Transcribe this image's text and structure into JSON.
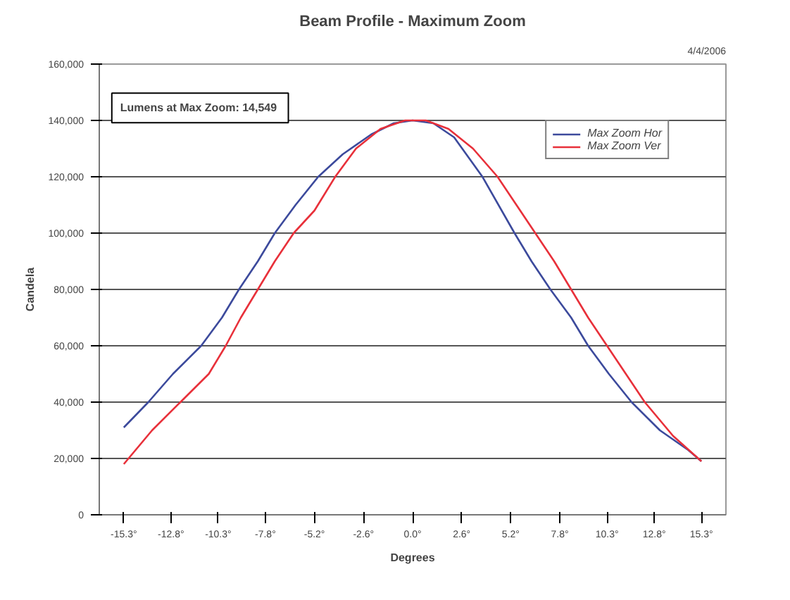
{
  "chart_data": {
    "type": "line",
    "title": "Beam Profile - Maximum Zoom",
    "xlabel": "Degrees",
    "ylabel": "Candela",
    "annotations": [
      "4/4/2006",
      "Lumens at Max Zoom:  14,549"
    ],
    "xlim": [
      -16.6,
      16.6
    ],
    "ylim": [
      0,
      160000
    ],
    "xticks": [
      {
        "value": -15.3,
        "label": "-15.3°"
      },
      {
        "value": -12.8,
        "label": "-12.8°"
      },
      {
        "value": -10.3,
        "label": "-10.3°"
      },
      {
        "value": -7.8,
        "label": "-7.8°"
      },
      {
        "value": -5.2,
        "label": "-5.2°"
      },
      {
        "value": -2.6,
        "label": "-2.6°"
      },
      {
        "value": 0,
        "label": "0.0°"
      },
      {
        "value": 2.6,
        "label": "2.6°"
      },
      {
        "value": 5.2,
        "label": "5.2°"
      },
      {
        "value": 7.8,
        "label": "7.8°"
      },
      {
        "value": 10.3,
        "label": "10.3°"
      },
      {
        "value": 12.8,
        "label": "12.8°"
      },
      {
        "value": 15.3,
        "label": "15.3°"
      }
    ],
    "yticks": [
      {
        "value": 0,
        "label": "0"
      },
      {
        "value": 20000,
        "label": "20,000"
      },
      {
        "value": 40000,
        "label": "40,000"
      },
      {
        "value": 60000,
        "label": "60,000"
      },
      {
        "value": 80000,
        "label": "80,000"
      },
      {
        "value": 100000,
        "label": "100,000"
      },
      {
        "value": 120000,
        "label": "120,000"
      },
      {
        "value": 140000,
        "label": "140,000"
      },
      {
        "value": 160000,
        "label": "160,000"
      }
    ],
    "grid": "y",
    "legend": "top right",
    "marker": "none",
    "line_style": "solid",
    "series": [
      {
        "name": "Max Zoom Hor",
        "color": "#3c4a9c",
        "x": [
          -15.3,
          -14.0,
          -12.7,
          -11.2,
          -10.1,
          -9.2,
          -8.2,
          -7.3,
          -6.2,
          -5.0,
          -3.7,
          -2.2,
          -1.0,
          0,
          1.1,
          2.2,
          3.7,
          5.4,
          6.3,
          7.3,
          8.4,
          9.3,
          10.4,
          11.6,
          13.1,
          14.6,
          15.3
        ],
        "values": [
          31000,
          40000,
          50000,
          60000,
          70000,
          80000,
          90000,
          100000,
          110000,
          120000,
          128000,
          135000,
          139000,
          140000,
          139000,
          134000,
          120000,
          100000,
          90000,
          80000,
          70000,
          60000,
          50000,
          40000,
          30000,
          23000,
          19000
        ]
      },
      {
        "name": "Max Zoom Ver",
        "color": "#e8303a",
        "x": [
          -15.3,
          -13.8,
          -12.3,
          -10.8,
          -9.9,
          -9.1,
          -8.2,
          -7.3,
          -6.3,
          -5.2,
          -4.1,
          -3.0,
          -1.7,
          -0.4,
          0.7,
          1.9,
          3.2,
          4.5,
          5.5,
          6.5,
          7.5,
          8.4,
          9.3,
          10.3,
          11.3,
          12.3,
          13.8,
          15.3
        ],
        "values": [
          18000,
          30000,
          40000,
          50000,
          60000,
          70000,
          80000,
          90000,
          100000,
          108000,
          120000,
          130000,
          137000,
          140000,
          140000,
          137000,
          130000,
          120000,
          110000,
          100000,
          90000,
          80000,
          70000,
          60000,
          50000,
          40000,
          28000,
          19000
        ]
      }
    ]
  }
}
